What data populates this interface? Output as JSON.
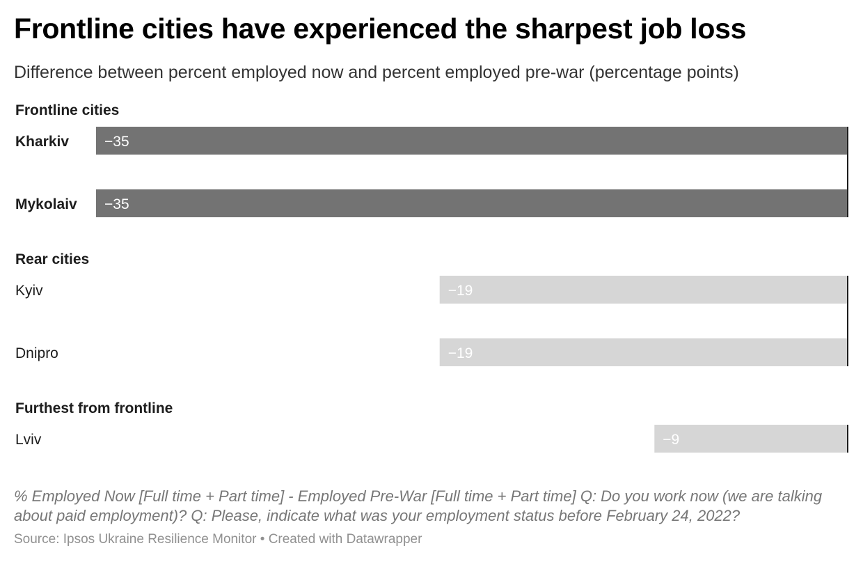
{
  "header": {
    "title": "Frontline cities have experienced the sharpest job loss",
    "subtitle": "Difference between percent employed now and percent employed pre-war (percentage points)"
  },
  "chart_data": {
    "type": "bar",
    "orientation": "horizontal",
    "xlim": [
      -35,
      0
    ],
    "groups": [
      {
        "name": "Frontline cities",
        "color": "#737373",
        "label_color": "#ffffff",
        "bold_labels": true,
        "rows": [
          {
            "category": "Kharkiv",
            "value": -35,
            "label": "−35"
          },
          {
            "category": "Mykolaiv",
            "value": -35,
            "label": "−35"
          }
        ]
      },
      {
        "name": "Rear cities",
        "color": "#d6d6d6",
        "label_color": "#ffffff",
        "bold_labels": false,
        "rows": [
          {
            "category": "Kyiv",
            "value": -19,
            "label": "−19"
          },
          {
            "category": "Dnipro",
            "value": -19,
            "label": "−19"
          }
        ]
      },
      {
        "name": "Furthest from frontline",
        "color": "#d6d6d6",
        "label_color": "#ffffff",
        "bold_labels": false,
        "rows": [
          {
            "category": "Lviv",
            "value": -9,
            "label": "−9"
          }
        ]
      }
    ]
  },
  "footer": {
    "note": "% Employed Now [Full time + Part time] - Employed Pre-War [Full time + Part time] Q: Do you work now (we are talking about paid employment)? Q: Please, indicate what was your employment status before February 24, 2022?",
    "source": "Source: Ipsos Ukraine Resilience Monitor • Created with Datawrapper"
  }
}
